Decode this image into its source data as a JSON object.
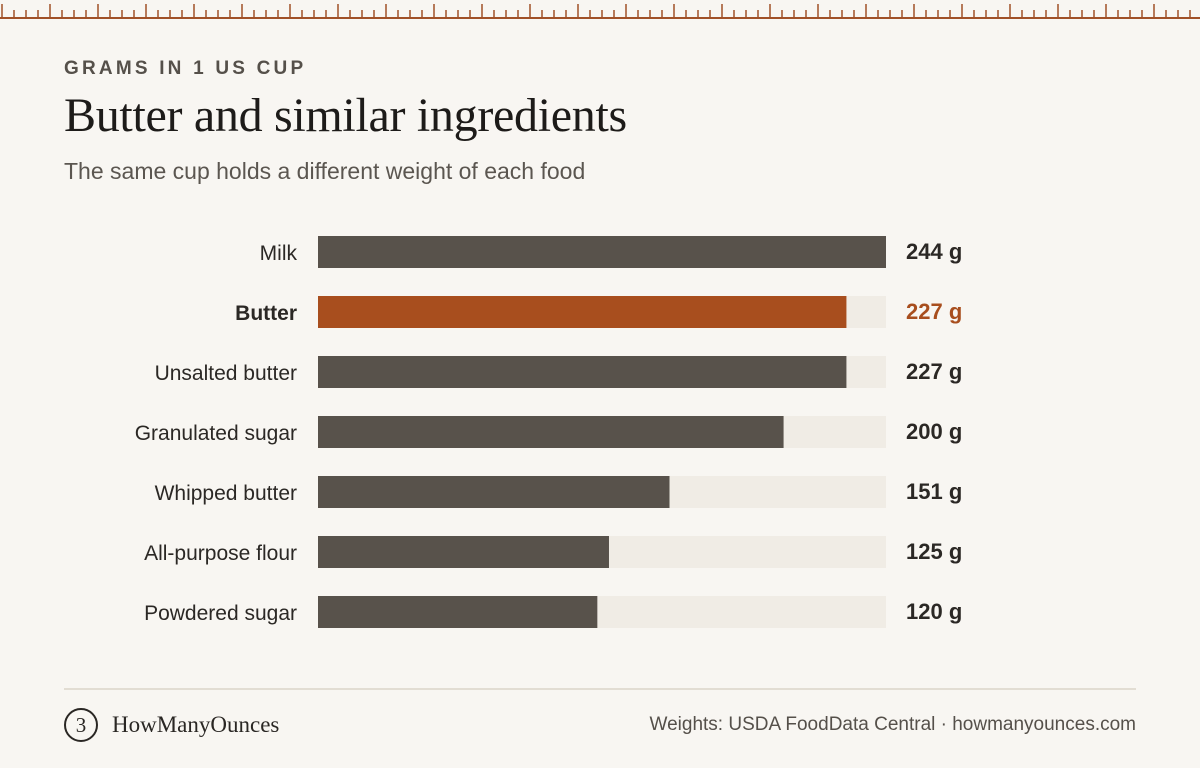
{
  "header": {
    "kicker": "GRAMS IN 1 US CUP",
    "title": "Butter and similar ingredients",
    "subtitle": "The same cup holds a different weight of each food"
  },
  "colors": {
    "bar": "#58524b",
    "highlight": "#a84e1e",
    "track": "#f0ece5",
    "label": "#2b2825",
    "ruler": "#a05027"
  },
  "chart_data": {
    "type": "bar",
    "orientation": "horizontal",
    "categories": [
      "Milk",
      "Butter",
      "Unsalted butter",
      "Granulated sugar",
      "Whipped butter",
      "All-purpose flour",
      "Powdered sugar"
    ],
    "values": [
      244,
      227,
      227,
      200,
      151,
      125,
      120
    ],
    "value_labels": [
      "244 g",
      "227 g",
      "227 g",
      "200 g",
      "151 g",
      "125 g",
      "120 g"
    ],
    "unit": "g",
    "highlight": "Butter",
    "xlim": [
      0,
      244
    ],
    "grid": false,
    "legend": "none"
  },
  "footer": {
    "brand_icon": "3",
    "brand_name": "HowManyOunces",
    "source": "Weights: USDA FoodData Central · howmanyounces.com"
  }
}
